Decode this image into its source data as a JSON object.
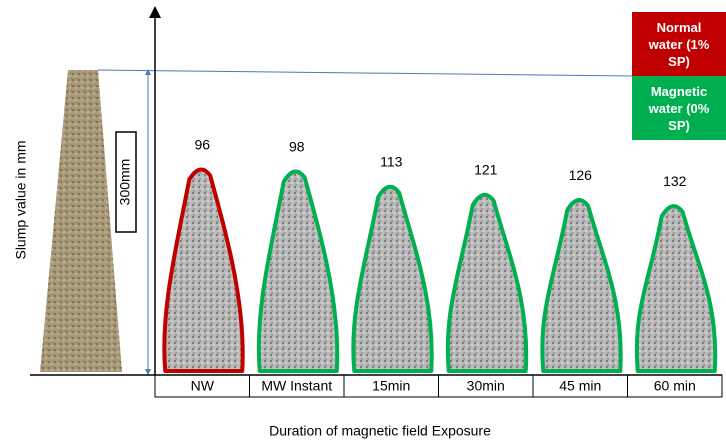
{
  "chart_data": {
    "type": "pile",
    "ylabel": "Slump value in mm",
    "xlabel": "Duration of magnetic field Exposure",
    "cone_label": "300mm",
    "categories": [
      "NW",
      "MW Instant",
      "15min",
      "30min",
      "45 min",
      "60 min"
    ],
    "series": [
      {
        "name": "Normal water (1% SP)",
        "color": "#c00000",
        "values": [
          96,
          null,
          null,
          null,
          null,
          null
        ]
      },
      {
        "name": "Magnetic water (0% SP)",
        "color": "#00b050",
        "values": [
          null,
          98,
          113,
          121,
          126,
          132
        ]
      }
    ],
    "ylim": [
      0,
      300
    ]
  }
}
